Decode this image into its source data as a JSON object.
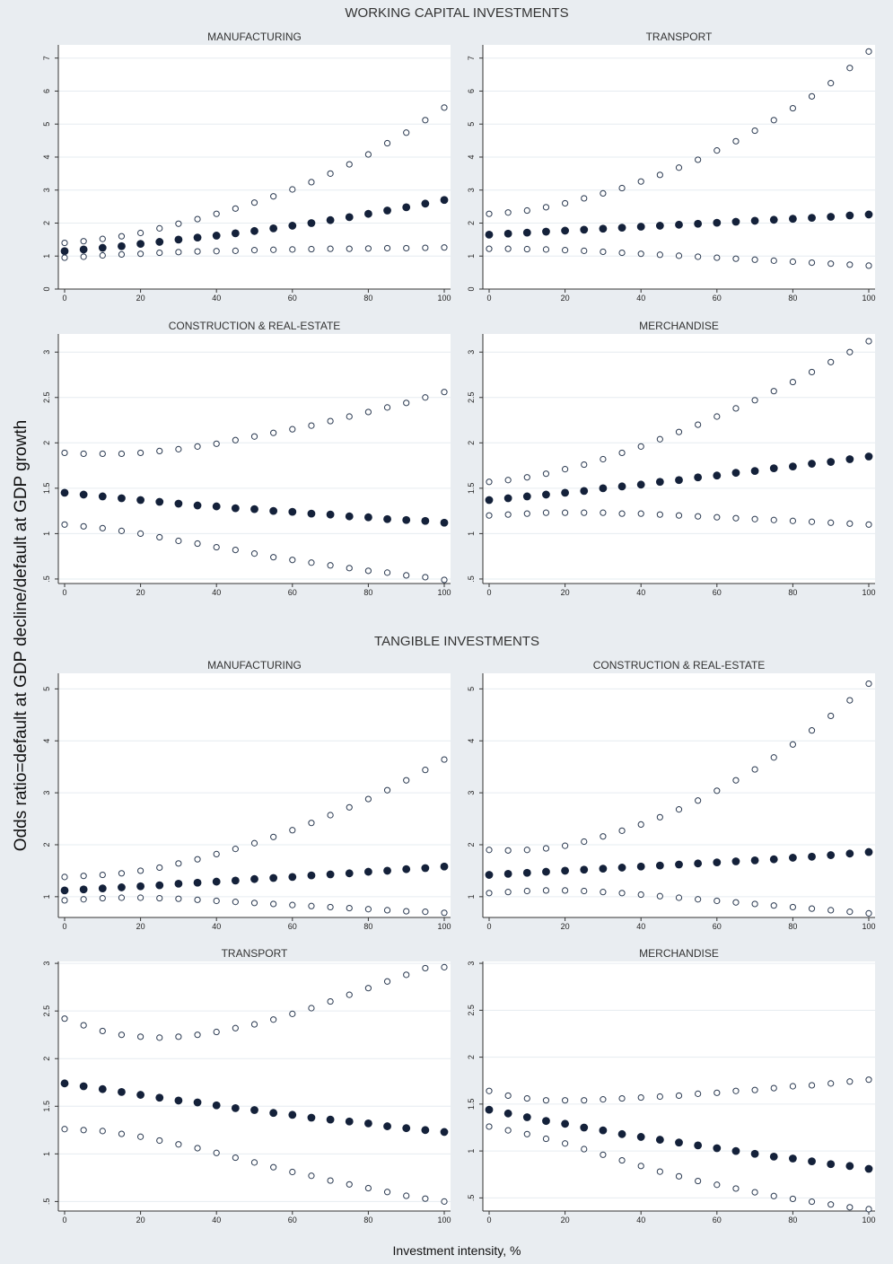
{
  "figure": {
    "section_titles": [
      "WORKING CAPITAL INVESTMENTS",
      "TANGIBLE INVESTMENTS"
    ],
    "ylabel": "Odds ratio=default at GDP decline/default at GDP growth",
    "xlabel": "Investment intensity, %"
  },
  "chart_data": [
    {
      "type": "scatter",
      "section": "WORKING CAPITAL INVESTMENTS",
      "title": "MANUFACTURING",
      "xlim": [
        0,
        100
      ],
      "xticks": [
        0,
        20,
        40,
        60,
        80,
        100
      ],
      "ylim": [
        0,
        7.4
      ],
      "yticks": [
        0,
        1,
        2,
        3,
        4,
        5,
        6,
        7
      ],
      "ytick_labels": [
        "0",
        "1",
        "2",
        "3",
        "4",
        "5",
        "6",
        "7"
      ],
      "x": [
        0,
        5,
        10,
        15,
        20,
        25,
        30,
        35,
        40,
        45,
        50,
        55,
        60,
        65,
        70,
        75,
        80,
        85,
        90,
        95,
        100
      ],
      "series": [
        {
          "role": "point estimate",
          "values": [
            1.15,
            1.2,
            1.25,
            1.3,
            1.37,
            1.43,
            1.5,
            1.56,
            1.62,
            1.69,
            1.76,
            1.84,
            1.92,
            2.0,
            2.09,
            2.18,
            2.28,
            2.38,
            2.48,
            2.59,
            2.7
          ]
        },
        {
          "role": "upper bound",
          "values": [
            1.4,
            1.45,
            1.52,
            1.6,
            1.7,
            1.84,
            1.98,
            2.12,
            2.28,
            2.44,
            2.62,
            2.81,
            3.02,
            3.24,
            3.5,
            3.78,
            4.08,
            4.42,
            4.74,
            5.12,
            5.5
          ]
        },
        {
          "role": "lower bound",
          "values": [
            0.95,
            0.98,
            1.02,
            1.05,
            1.07,
            1.1,
            1.12,
            1.14,
            1.15,
            1.16,
            1.18,
            1.19,
            1.2,
            1.21,
            1.22,
            1.22,
            1.23,
            1.24,
            1.24,
            1.25,
            1.26
          ]
        }
      ]
    },
    {
      "type": "scatter",
      "section": "WORKING CAPITAL INVESTMENTS",
      "title": "TRANSPORT",
      "xlim": [
        0,
        100
      ],
      "xticks": [
        0,
        20,
        40,
        60,
        80,
        100
      ],
      "ylim": [
        0,
        7.4
      ],
      "yticks": [
        0,
        1,
        2,
        3,
        4,
        5,
        6,
        7
      ],
      "ytick_labels": [
        "0",
        "1",
        "2",
        "3",
        "4",
        "5",
        "6",
        "7"
      ],
      "x": [
        0,
        5,
        10,
        15,
        20,
        25,
        30,
        35,
        40,
        45,
        50,
        55,
        60,
        65,
        70,
        75,
        80,
        85,
        90,
        95,
        100
      ],
      "series": [
        {
          "role": "point estimate",
          "values": [
            1.65,
            1.68,
            1.71,
            1.74,
            1.77,
            1.8,
            1.83,
            1.86,
            1.89,
            1.92,
            1.95,
            1.98,
            2.01,
            2.04,
            2.07,
            2.1,
            2.13,
            2.16,
            2.19,
            2.23,
            2.26
          ]
        },
        {
          "role": "upper bound",
          "values": [
            2.28,
            2.32,
            2.38,
            2.48,
            2.6,
            2.75,
            2.9,
            3.06,
            3.26,
            3.46,
            3.68,
            3.92,
            4.2,
            4.48,
            4.8,
            5.12,
            5.48,
            5.84,
            6.24,
            6.7,
            7.2
          ]
        },
        {
          "role": "lower bound",
          "values": [
            1.22,
            1.22,
            1.21,
            1.2,
            1.18,
            1.16,
            1.13,
            1.1,
            1.07,
            1.04,
            1.01,
            0.98,
            0.95,
            0.92,
            0.89,
            0.86,
            0.83,
            0.8,
            0.77,
            0.74,
            0.71
          ]
        }
      ]
    },
    {
      "type": "scatter",
      "section": "WORKING CAPITAL INVESTMENTS",
      "title": "CONSTRUCTION & REAL-ESTATE",
      "xlim": [
        0,
        100
      ],
      "xticks": [
        0,
        20,
        40,
        60,
        80,
        100
      ],
      "ylim": [
        0.45,
        3.2
      ],
      "yticks": [
        0.5,
        1,
        1.5,
        2,
        2.5,
        3
      ],
      "ytick_labels": [
        ".5",
        "1",
        "1.5",
        "2",
        "2.5",
        "3"
      ],
      "x": [
        0,
        5,
        10,
        15,
        20,
        25,
        30,
        35,
        40,
        45,
        50,
        55,
        60,
        65,
        70,
        75,
        80,
        85,
        90,
        95,
        100
      ],
      "series": [
        {
          "role": "point estimate",
          "values": [
            1.45,
            1.43,
            1.41,
            1.39,
            1.37,
            1.35,
            1.33,
            1.31,
            1.3,
            1.28,
            1.27,
            1.25,
            1.24,
            1.22,
            1.21,
            1.19,
            1.18,
            1.16,
            1.15,
            1.14,
            1.12
          ]
        },
        {
          "role": "upper bound",
          "values": [
            1.89,
            1.88,
            1.88,
            1.88,
            1.89,
            1.91,
            1.93,
            1.96,
            1.99,
            2.03,
            2.07,
            2.11,
            2.15,
            2.19,
            2.24,
            2.29,
            2.34,
            2.39,
            2.44,
            2.5,
            2.56
          ]
        },
        {
          "role": "lower bound",
          "values": [
            1.1,
            1.08,
            1.06,
            1.03,
            1.0,
            0.96,
            0.92,
            0.89,
            0.85,
            0.82,
            0.78,
            0.74,
            0.71,
            0.68,
            0.65,
            0.62,
            0.59,
            0.57,
            0.54,
            0.52,
            0.49
          ]
        }
      ]
    },
    {
      "type": "scatter",
      "section": "WORKING CAPITAL INVESTMENTS",
      "title": "MERCHANDISE",
      "xlim": [
        0,
        100
      ],
      "xticks": [
        0,
        20,
        40,
        60,
        80,
        100
      ],
      "ylim": [
        0.45,
        3.2
      ],
      "yticks": [
        0.5,
        1,
        1.5,
        2,
        2.5,
        3
      ],
      "ytick_labels": [
        ".5",
        "1",
        "1.5",
        "2",
        "2.5",
        "3"
      ],
      "x": [
        0,
        5,
        10,
        15,
        20,
        25,
        30,
        35,
        40,
        45,
        50,
        55,
        60,
        65,
        70,
        75,
        80,
        85,
        90,
        95,
        100
      ],
      "series": [
        {
          "role": "point estimate",
          "values": [
            1.37,
            1.39,
            1.41,
            1.43,
            1.45,
            1.47,
            1.5,
            1.52,
            1.54,
            1.57,
            1.59,
            1.62,
            1.64,
            1.67,
            1.69,
            1.72,
            1.74,
            1.77,
            1.79,
            1.82,
            1.85
          ]
        },
        {
          "role": "upper bound",
          "values": [
            1.57,
            1.59,
            1.62,
            1.66,
            1.71,
            1.76,
            1.82,
            1.89,
            1.96,
            2.04,
            2.12,
            2.2,
            2.29,
            2.38,
            2.47,
            2.57,
            2.67,
            2.78,
            2.89,
            3.0,
            3.12
          ]
        },
        {
          "role": "lower bound",
          "values": [
            1.2,
            1.21,
            1.22,
            1.23,
            1.23,
            1.23,
            1.23,
            1.22,
            1.22,
            1.21,
            1.2,
            1.19,
            1.18,
            1.17,
            1.16,
            1.15,
            1.14,
            1.13,
            1.12,
            1.11,
            1.1
          ]
        }
      ]
    },
    {
      "type": "scatter",
      "section": "TANGIBLE INVESTMENTS",
      "title": "MANUFACTURING",
      "xlim": [
        0,
        100
      ],
      "xticks": [
        0,
        20,
        40,
        60,
        80,
        100
      ],
      "ylim": [
        0.6,
        5.3
      ],
      "yticks": [
        1,
        2,
        3,
        4,
        5
      ],
      "ytick_labels": [
        "1",
        "2",
        "3",
        "4",
        "5"
      ],
      "x": [
        0,
        5,
        10,
        15,
        20,
        25,
        30,
        35,
        40,
        45,
        50,
        55,
        60,
        65,
        70,
        75,
        80,
        85,
        90,
        95,
        100
      ],
      "series": [
        {
          "role": "point estimate",
          "values": [
            1.12,
            1.14,
            1.16,
            1.18,
            1.2,
            1.22,
            1.25,
            1.27,
            1.29,
            1.31,
            1.34,
            1.36,
            1.38,
            1.41,
            1.43,
            1.45,
            1.48,
            1.5,
            1.53,
            1.55,
            1.58
          ]
        },
        {
          "role": "upper bound",
          "values": [
            1.38,
            1.4,
            1.42,
            1.45,
            1.5,
            1.56,
            1.64,
            1.72,
            1.82,
            1.92,
            2.03,
            2.15,
            2.28,
            2.42,
            2.57,
            2.72,
            2.88,
            3.05,
            3.24,
            3.44,
            3.64
          ]
        },
        {
          "role": "lower bound",
          "values": [
            0.93,
            0.95,
            0.97,
            0.98,
            0.98,
            0.97,
            0.96,
            0.94,
            0.92,
            0.9,
            0.88,
            0.86,
            0.84,
            0.82,
            0.8,
            0.78,
            0.76,
            0.74,
            0.72,
            0.71,
            0.69
          ]
        }
      ]
    },
    {
      "type": "scatter",
      "section": "TANGIBLE INVESTMENTS",
      "title": "CONSTRUCTION & REAL-ESTATE",
      "xlim": [
        0,
        100
      ],
      "xticks": [
        0,
        20,
        40,
        60,
        80,
        100
      ],
      "ylim": [
        0.6,
        5.3
      ],
      "yticks": [
        1,
        2,
        3,
        4,
        5
      ],
      "ytick_labels": [
        "1",
        "2",
        "3",
        "4",
        "5"
      ],
      "x": [
        0,
        5,
        10,
        15,
        20,
        25,
        30,
        35,
        40,
        45,
        50,
        55,
        60,
        65,
        70,
        75,
        80,
        85,
        90,
        95,
        100
      ],
      "series": [
        {
          "role": "point estimate",
          "values": [
            1.42,
            1.44,
            1.46,
            1.48,
            1.5,
            1.52,
            1.54,
            1.56,
            1.58,
            1.6,
            1.62,
            1.64,
            1.66,
            1.68,
            1.7,
            1.72,
            1.75,
            1.77,
            1.8,
            1.83,
            1.86
          ]
        },
        {
          "role": "upper bound",
          "values": [
            1.9,
            1.89,
            1.9,
            1.93,
            1.98,
            2.06,
            2.16,
            2.27,
            2.39,
            2.53,
            2.68,
            2.85,
            3.04,
            3.24,
            3.45,
            3.68,
            3.93,
            4.2,
            4.48,
            4.78,
            5.1
          ]
        },
        {
          "role": "lower bound",
          "values": [
            1.07,
            1.09,
            1.11,
            1.12,
            1.12,
            1.11,
            1.09,
            1.07,
            1.04,
            1.01,
            0.98,
            0.95,
            0.92,
            0.89,
            0.86,
            0.83,
            0.8,
            0.77,
            0.74,
            0.71,
            0.68
          ]
        }
      ]
    },
    {
      "type": "scatter",
      "section": "TANGIBLE INVESTMENTS",
      "title": "TRANSPORT",
      "xlim": [
        0,
        100
      ],
      "xticks": [
        0,
        20,
        40,
        60,
        80,
        100
      ],
      "ylim": [
        0.4,
        3.02
      ],
      "yticks": [
        0.5,
        1,
        1.5,
        2,
        2.5,
        3
      ],
      "ytick_labels": [
        ".5",
        "1",
        "1.5",
        "2",
        "2.5",
        "3"
      ],
      "x": [
        0,
        5,
        10,
        15,
        20,
        25,
        30,
        35,
        40,
        45,
        50,
        55,
        60,
        65,
        70,
        75,
        80,
        85,
        90,
        95,
        100
      ],
      "series": [
        {
          "role": "point estimate",
          "values": [
            1.74,
            1.71,
            1.68,
            1.65,
            1.62,
            1.59,
            1.56,
            1.54,
            1.51,
            1.48,
            1.46,
            1.43,
            1.41,
            1.38,
            1.36,
            1.34,
            1.32,
            1.29,
            1.27,
            1.25,
            1.23
          ]
        },
        {
          "role": "upper bound",
          "values": [
            2.42,
            2.35,
            2.29,
            2.25,
            2.23,
            2.22,
            2.23,
            2.25,
            2.28,
            2.32,
            2.36,
            2.41,
            2.47,
            2.53,
            2.6,
            2.67,
            2.74,
            2.81,
            2.88,
            2.95,
            2.96
          ]
        },
        {
          "role": "lower bound",
          "values": [
            1.26,
            1.25,
            1.24,
            1.21,
            1.18,
            1.14,
            1.1,
            1.06,
            1.01,
            0.96,
            0.91,
            0.86,
            0.81,
            0.77,
            0.72,
            0.68,
            0.64,
            0.6,
            0.56,
            0.53,
            0.5
          ]
        }
      ]
    },
    {
      "type": "scatter",
      "section": "TANGIBLE INVESTMENTS",
      "title": "MERCHANDISE",
      "xlim": [
        0,
        100
      ],
      "xticks": [
        0,
        20,
        40,
        60,
        80,
        100
      ],
      "ylim": [
        0.36,
        3.02
      ],
      "yticks": [
        0.5,
        1,
        1.5,
        2,
        2.5,
        3
      ],
      "ytick_labels": [
        ".5",
        "1",
        "1.5",
        "2",
        "2.5",
        "3"
      ],
      "x": [
        0,
        5,
        10,
        15,
        20,
        25,
        30,
        35,
        40,
        45,
        50,
        55,
        60,
        65,
        70,
        75,
        80,
        85,
        90,
        95,
        100
      ],
      "series": [
        {
          "role": "point estimate",
          "values": [
            1.44,
            1.4,
            1.36,
            1.32,
            1.29,
            1.25,
            1.22,
            1.18,
            1.15,
            1.12,
            1.09,
            1.06,
            1.03,
            1.0,
            0.97,
            0.94,
            0.92,
            0.89,
            0.86,
            0.84,
            0.81
          ]
        },
        {
          "role": "upper bound",
          "values": [
            1.64,
            1.59,
            1.56,
            1.54,
            1.54,
            1.54,
            1.55,
            1.56,
            1.57,
            1.58,
            1.59,
            1.61,
            1.62,
            1.64,
            1.65,
            1.67,
            1.69,
            1.7,
            1.72,
            1.74,
            1.76
          ]
        },
        {
          "role": "lower bound",
          "values": [
            1.26,
            1.22,
            1.18,
            1.13,
            1.08,
            1.02,
            0.96,
            0.9,
            0.84,
            0.78,
            0.73,
            0.68,
            0.64,
            0.6,
            0.56,
            0.52,
            0.49,
            0.46,
            0.43,
            0.4,
            0.38
          ]
        }
      ]
    }
  ]
}
